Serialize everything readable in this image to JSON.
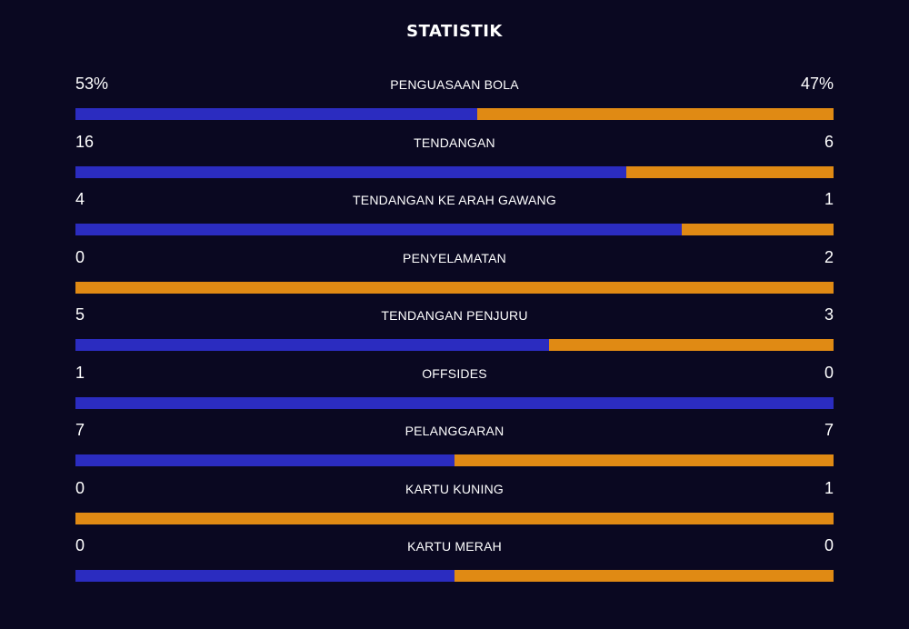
{
  "title": "STATISTIK",
  "colors": {
    "background": "#0a0821",
    "home": "#2b2cc0",
    "away": "#e08a14"
  },
  "stats": [
    {
      "name": "PENGUASAAN BOLA",
      "home": "53%",
      "away": "47%",
      "home_share": 0.53
    },
    {
      "name": "TENDANGAN",
      "home": "16",
      "away": "6",
      "home_share": 0.727
    },
    {
      "name": "TENDANGAN KE ARAH GAWANG",
      "home": "4",
      "away": "1",
      "home_share": 0.8
    },
    {
      "name": "PENYELAMATAN",
      "home": "0",
      "away": "2",
      "home_share": 0.0
    },
    {
      "name": "TENDANGAN PENJURU",
      "home": "5",
      "away": "3",
      "home_share": 0.625
    },
    {
      "name": "OFFSIDES",
      "home": "1",
      "away": "0",
      "home_share": 1.0
    },
    {
      "name": "PELANGGARAN",
      "home": "7",
      "away": "7",
      "home_share": 0.5
    },
    {
      "name": "KARTU KUNING",
      "home": "0",
      "away": "1",
      "home_share": 0.0
    },
    {
      "name": "KARTU MERAH",
      "home": "0",
      "away": "0",
      "home_share": 0.5
    }
  ]
}
